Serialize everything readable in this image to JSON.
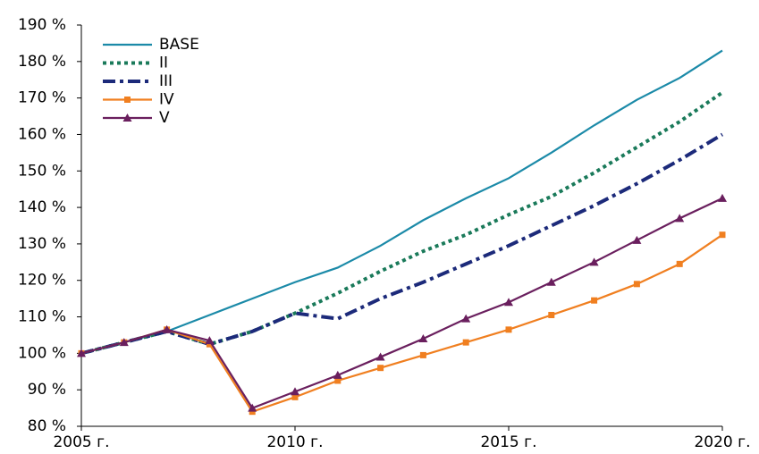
{
  "chart_data": {
    "type": "line",
    "x": [
      2005,
      2006,
      2007,
      2008,
      2009,
      2010,
      2011,
      2012,
      2013,
      2014,
      2015,
      2016,
      2017,
      2018,
      2019,
      2020
    ],
    "xlim": [
      2005,
      2020
    ],
    "xticks": [
      {
        "value": 2005,
        "label": "2005 г."
      },
      {
        "value": 2010,
        "label": "2010 г."
      },
      {
        "value": 2015,
        "label": "2015 г."
      },
      {
        "value": 2020,
        "label": "2020 г."
      }
    ],
    "ylim": [
      80,
      190
    ],
    "yticks": [
      {
        "value": 80,
        "label": "80 %"
      },
      {
        "value": 90,
        "label": "90 %"
      },
      {
        "value": 100,
        "label": "100 %"
      },
      {
        "value": 110,
        "label": "110 %"
      },
      {
        "value": 120,
        "label": "120 %"
      },
      {
        "value": 130,
        "label": "130 %"
      },
      {
        "value": 140,
        "label": "140 %"
      },
      {
        "value": 150,
        "label": "150 %"
      },
      {
        "value": 160,
        "label": "160 %"
      },
      {
        "value": 170,
        "label": "170 %"
      },
      {
        "value": 180,
        "label": "180 %"
      },
      {
        "value": 190,
        "label": "190 %"
      }
    ],
    "grid": false,
    "legend": "upper-left",
    "series": [
      {
        "name": "BASE",
        "color": "#1b8aa8",
        "dash": "solid",
        "marker": "none",
        "values": [
          100,
          103,
          106,
          110.5,
          115,
          119.5,
          123.5,
          129.5,
          136.5,
          142.5,
          148,
          155,
          162.5,
          169.5,
          175.5,
          183
        ]
      },
      {
        "name": "II",
        "color": "#1a7a5a",
        "dash": "dot",
        "marker": "none",
        "values": [
          100,
          103,
          106,
          102.5,
          106,
          111,
          116.5,
          122.5,
          128,
          132.5,
          138,
          143,
          149.5,
          156.5,
          163.5,
          171.5
        ]
      },
      {
        "name": "III",
        "color": "#1c2a7a",
        "dash": "dashdot",
        "marker": "none",
        "values": [
          100,
          103,
          106,
          102.5,
          106,
          111,
          109.5,
          115,
          119.5,
          124.5,
          129.5,
          135,
          140.5,
          146.5,
          153,
          160
        ]
      },
      {
        "name": "IV",
        "color": "#f07f20",
        "dash": "solid",
        "marker": "square",
        "values": [
          100,
          103,
          106.5,
          102.5,
          84,
          88,
          92.5,
          96,
          99.5,
          103,
          106.5,
          110.5,
          114.5,
          119,
          124.5,
          132.5
        ]
      },
      {
        "name": "V",
        "color": "#6a1f5e",
        "dash": "solid",
        "marker": "triangle",
        "values": [
          100,
          103,
          106.5,
          103.5,
          85,
          89.5,
          94,
          99,
          104,
          109.5,
          114,
          119.5,
          125,
          131,
          137,
          142.5
        ]
      }
    ]
  }
}
